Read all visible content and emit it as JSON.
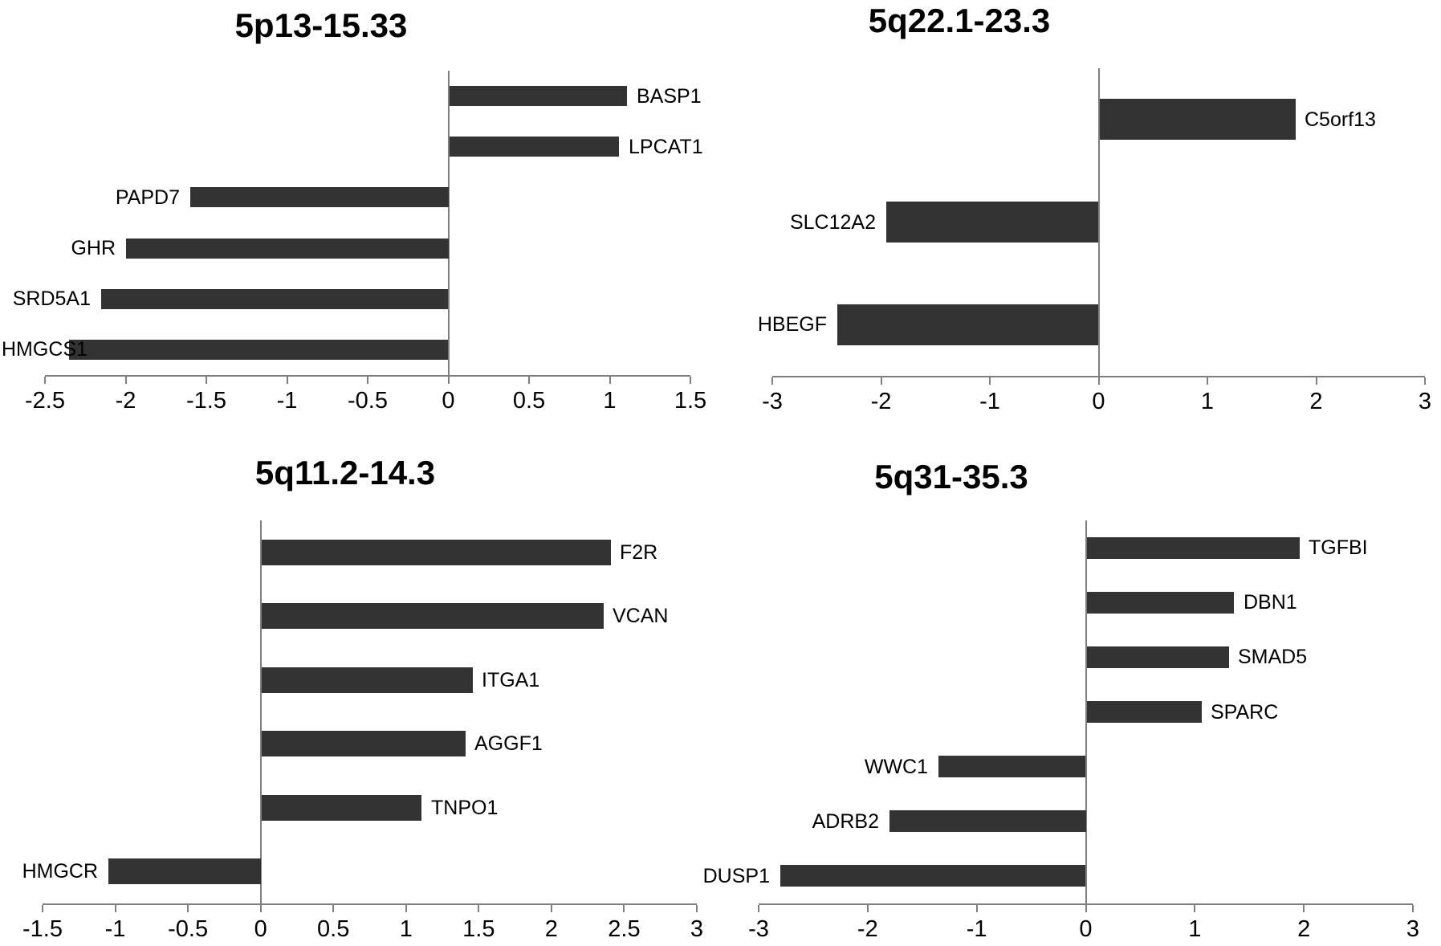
{
  "figure": {
    "background": "#ffffff",
    "bar_color": "#333333",
    "axis_color": "#7f7f7f",
    "text_color": "#000000"
  },
  "chart_data": [
    {
      "type": "bar",
      "orientation": "horizontal",
      "title": "5p13-15.33",
      "xlabel": "",
      "ylabel": "",
      "xlim": [
        -2.5,
        1.5
      ],
      "tick_step": 0.5,
      "grid": false,
      "legend": false,
      "categories": [
        "BASP1",
        "LPCAT1",
        "PAPD7",
        "GHR",
        "SRD5A1",
        "HMGCS1"
      ],
      "values": [
        1.1,
        1.05,
        -1.6,
        -2.0,
        -2.15,
        -2.35
      ]
    },
    {
      "type": "bar",
      "orientation": "horizontal",
      "title": "5q22.1-23.3",
      "xlabel": "",
      "ylabel": "",
      "xlim": [
        -3,
        3
      ],
      "tick_step": 1,
      "grid": false,
      "legend": false,
      "categories": [
        "C5orf13",
        "SLC12A2",
        "HBEGF"
      ],
      "values": [
        1.8,
        -1.95,
        -2.4
      ]
    },
    {
      "type": "bar",
      "orientation": "horizontal",
      "title": "5q11.2-14.3",
      "xlabel": "",
      "ylabel": "",
      "xlim": [
        -1.5,
        3
      ],
      "tick_step": 0.5,
      "grid": false,
      "legend": false,
      "categories": [
        "F2R",
        "VCAN",
        "ITGA1",
        "AGGF1",
        "TNPO1",
        "HMGCR"
      ],
      "values": [
        2.4,
        2.35,
        1.45,
        1.4,
        1.1,
        -1.05
      ]
    },
    {
      "type": "bar",
      "orientation": "horizontal",
      "title": "5q31-35.3",
      "xlabel": "",
      "ylabel": "",
      "xlim": [
        -3,
        3
      ],
      "tick_step": 1,
      "grid": false,
      "legend": false,
      "categories": [
        "TGFBI",
        "DBN1",
        "SMAD5",
        "SPARC",
        "WWC1",
        "ADRB2",
        "DUSP1"
      ],
      "values": [
        1.95,
        1.35,
        1.3,
        1.05,
        -1.35,
        -1.8,
        -2.8
      ]
    }
  ]
}
